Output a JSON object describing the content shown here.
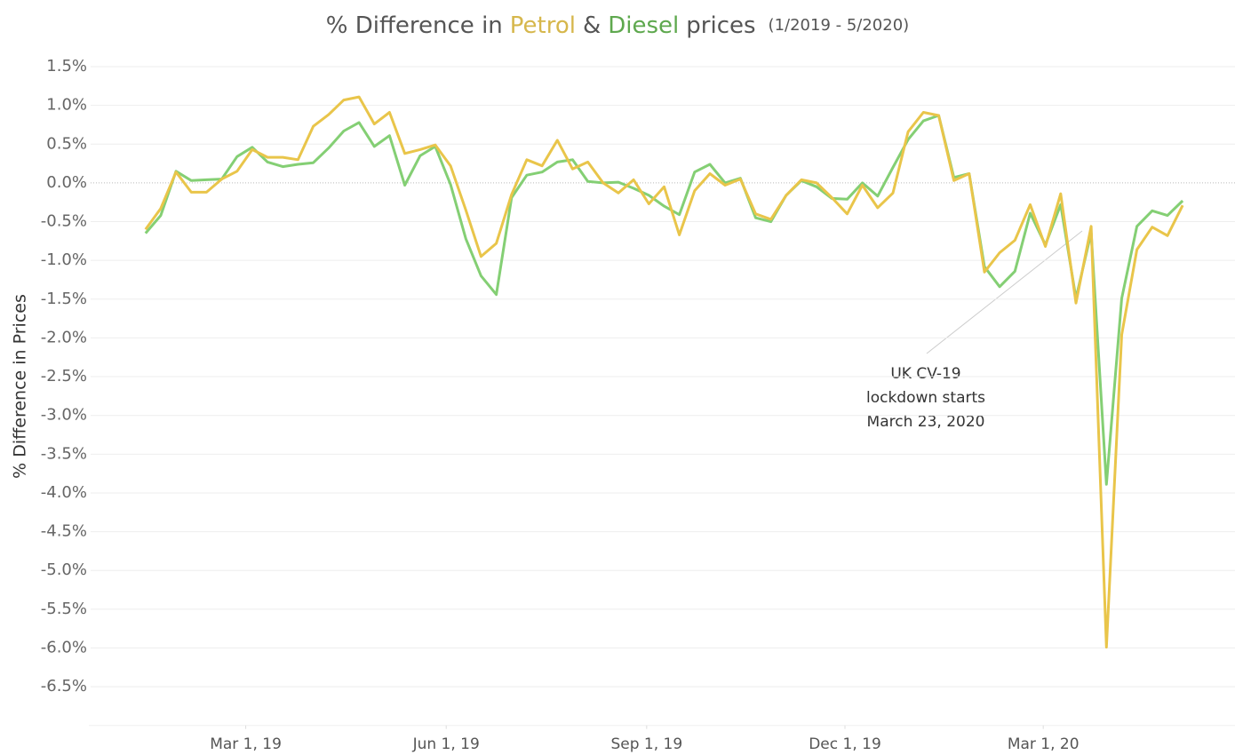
{
  "chart_data": {
    "type": "line",
    "title_parts": [
      "% Difference in",
      "&",
      "prices"
    ],
    "subtitle": "(1/2019 - 5/2020)",
    "y_label": "% Difference in Prices",
    "annotation": [
      "UK CV-19",
      "lockdown starts",
      "March 23, 2020"
    ],
    "x": [
      "2019-01-14",
      "2019-01-21",
      "2019-01-28",
      "2019-02-04",
      "2019-02-11",
      "2019-02-18",
      "2019-02-25",
      "2019-03-04",
      "2019-03-11",
      "2019-03-18",
      "2019-03-25",
      "2019-04-01",
      "2019-04-08",
      "2019-04-15",
      "2019-04-22",
      "2019-04-29",
      "2019-05-06",
      "2019-05-13",
      "2019-05-20",
      "2019-05-27",
      "2019-06-03",
      "2019-06-10",
      "2019-06-17",
      "2019-06-24",
      "2019-07-01",
      "2019-07-08",
      "2019-07-15",
      "2019-07-22",
      "2019-07-29",
      "2019-08-05",
      "2019-08-12",
      "2019-08-19",
      "2019-08-26",
      "2019-09-02",
      "2019-09-09",
      "2019-09-16",
      "2019-09-23",
      "2019-09-30",
      "2019-10-07",
      "2019-10-14",
      "2019-10-21",
      "2019-10-28",
      "2019-11-04",
      "2019-11-11",
      "2019-11-18",
      "2019-11-25",
      "2019-12-02",
      "2019-12-09",
      "2019-12-16",
      "2019-12-23",
      "2019-12-30",
      "2020-01-06",
      "2020-01-13",
      "2020-01-20",
      "2020-01-27",
      "2020-02-03",
      "2020-02-10",
      "2020-02-17",
      "2020-02-24",
      "2020-03-02",
      "2020-03-09",
      "2020-03-16",
      "2020-03-23",
      "2020-03-30",
      "2020-04-06",
      "2020-04-13",
      "2020-04-20",
      "2020-04-27",
      "2020-05-04"
    ],
    "series": [
      {
        "name": "Diesel",
        "color": "#84cf74",
        "title_color": "#5ea84e",
        "values": [
          -0.65,
          -0.42,
          0.15,
          0.03,
          0.04,
          0.05,
          0.34,
          0.46,
          0.27,
          0.21,
          0.24,
          0.26,
          0.45,
          0.67,
          0.78,
          0.47,
          0.61,
          -0.03,
          0.35,
          0.47,
          -0.02,
          -0.72,
          -1.2,
          -1.44,
          -0.19,
          0.1,
          0.14,
          0.27,
          0.3,
          0.02,
          0.0,
          0.01,
          -0.07,
          -0.16,
          -0.3,
          -0.41,
          0.14,
          0.24,
          0.0,
          0.06,
          -0.45,
          -0.5,
          -0.16,
          0.03,
          -0.05,
          -0.2,
          -0.21,
          0.0,
          -0.17,
          0.2,
          0.56,
          0.8,
          0.87,
          0.07,
          0.12,
          -1.08,
          -1.34,
          -1.14,
          -0.39,
          -0.8,
          -0.28,
          -1.49,
          -0.64,
          -3.89,
          -1.49,
          -0.56,
          -0.36,
          -0.42,
          -0.23
        ]
      },
      {
        "name": "Petrol",
        "color": "#e9c54a",
        "title_color": "#d6b74c",
        "values": [
          -0.6,
          -0.33,
          0.14,
          -0.12,
          -0.12,
          0.05,
          0.15,
          0.43,
          0.33,
          0.33,
          0.3,
          0.73,
          0.88,
          1.07,
          1.11,
          0.76,
          0.91,
          0.38,
          0.43,
          0.49,
          0.22,
          -0.35,
          -0.95,
          -0.78,
          -0.15,
          0.3,
          0.22,
          0.55,
          0.18,
          0.27,
          0.0,
          -0.13,
          0.04,
          -0.27,
          -0.05,
          -0.67,
          -0.1,
          0.12,
          -0.03,
          0.05,
          -0.4,
          -0.47,
          -0.16,
          0.04,
          0.0,
          -0.19,
          -0.4,
          -0.03,
          -0.32,
          -0.13,
          0.66,
          0.91,
          0.87,
          0.03,
          0.12,
          -1.15,
          -0.9,
          -0.74,
          -0.28,
          -0.82,
          -0.14,
          -1.55,
          -0.56,
          -5.99,
          -1.96,
          -0.86,
          -0.57,
          -0.68,
          -0.29
        ]
      }
    ],
    "xlim": [
      "2018-12-19",
      "2020-05-28"
    ],
    "xticks": [
      {
        "value": "2019-03-01",
        "label": "Mar 1, 19"
      },
      {
        "value": "2019-06-01",
        "label": "Jun 1, 19"
      },
      {
        "value": "2019-09-01",
        "label": "Sep 1, 19"
      },
      {
        "value": "2019-12-01",
        "label": "Dec 1, 19"
      },
      {
        "value": "2020-03-01",
        "label": "Mar 1, 20"
      }
    ],
    "ylim": [
      -7,
      1.7
    ],
    "yticks": [
      {
        "value": 1.5,
        "label": "1.5%"
      },
      {
        "value": 1,
        "label": "1.0%"
      },
      {
        "value": 0.5,
        "label": "0.5%"
      },
      {
        "value": 0,
        "label": "0.0%"
      },
      {
        "value": -0.5,
        "label": "-0.5%"
      },
      {
        "value": -1,
        "label": "-1.0%"
      },
      {
        "value": -1.5,
        "label": "-1.5%"
      },
      {
        "value": -2,
        "label": "-2.0%"
      },
      {
        "value": -2.5,
        "label": "-2.5%"
      },
      {
        "value": -3,
        "label": "-3.0%"
      },
      {
        "value": -3.5,
        "label": "-3.5%"
      },
      {
        "value": -4,
        "label": "-4.0%"
      },
      {
        "value": -4.5,
        "label": "-4.5%"
      },
      {
        "value": -5,
        "label": "-5.0%"
      },
      {
        "value": -5.5,
        "label": "-5.5%"
      },
      {
        "value": -6,
        "label": "-6.0%"
      },
      {
        "value": -6.5,
        "label": "-6.5%"
      }
    ],
    "grid": true
  }
}
